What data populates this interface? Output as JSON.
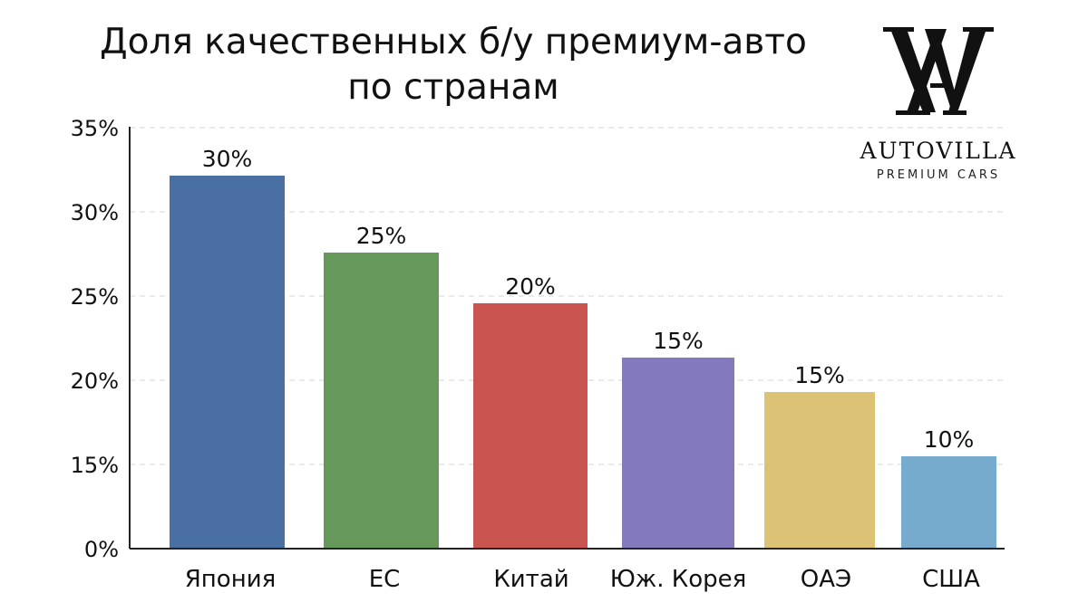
{
  "title_lines": [
    "Доля качественных б/у премиум-авто",
    "по странам"
  ],
  "brand": {
    "name": "AUTOVILLA",
    "tagline": "PREMIUM CARS",
    "monogram": "AV"
  },
  "chart_data": {
    "type": "bar",
    "title": "Доля качественных б/у премиум-авто по странам",
    "xlabel": "",
    "ylabel": "",
    "y_tick_labels": [
      "0%",
      "15%",
      "20%",
      "25%",
      "30%",
      "35%"
    ],
    "categories": [
      "Япония",
      "ЕС",
      "Китай",
      "Юж. Корея",
      "ОАЭ",
      "США"
    ],
    "data_labels": [
      "30%",
      "25%",
      "20%",
      "15%",
      "15%",
      "10%"
    ],
    "values": [
      30,
      25,
      20,
      15,
      15,
      10
    ],
    "bar_colors": [
      "#4a70a3",
      "#65985a",
      "#c95450",
      "#8379bd",
      "#dcc274",
      "#76abcd"
    ],
    "grid": true,
    "legend": "none"
  }
}
